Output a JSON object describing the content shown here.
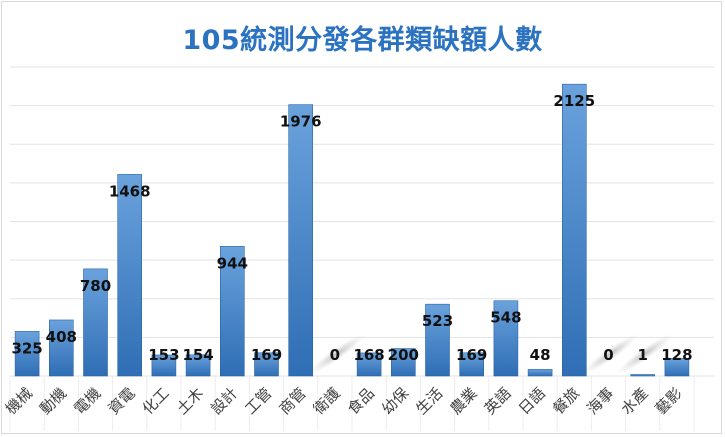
{
  "chart_data": {
    "type": "bar",
    "title": "105統測分發各群類缺額人數",
    "xlabel": "",
    "ylabel": "",
    "categories": [
      "機械",
      "動機",
      "電機",
      "資電",
      "化工",
      "土木",
      "設計",
      "工管",
      "商管",
      "衛護",
      "食品",
      "幼保",
      "生活",
      "農業",
      "英語",
      "日語",
      "餐旅",
      "海事",
      "水產",
      "藝影"
    ],
    "values": [
      325,
      408,
      780,
      1468,
      153,
      154,
      944,
      169,
      1976,
      0,
      168,
      200,
      523,
      169,
      548,
      48,
      2125,
      0,
      1,
      128
    ],
    "ylim": [
      0,
      2250
    ],
    "grid": true,
    "legend": "none",
    "colors": {
      "bar_top": "#6aa2dc",
      "bar_bottom": "#2f6eb5",
      "title": "#2b73c0",
      "gridline": "#d9d9d9"
    }
  }
}
